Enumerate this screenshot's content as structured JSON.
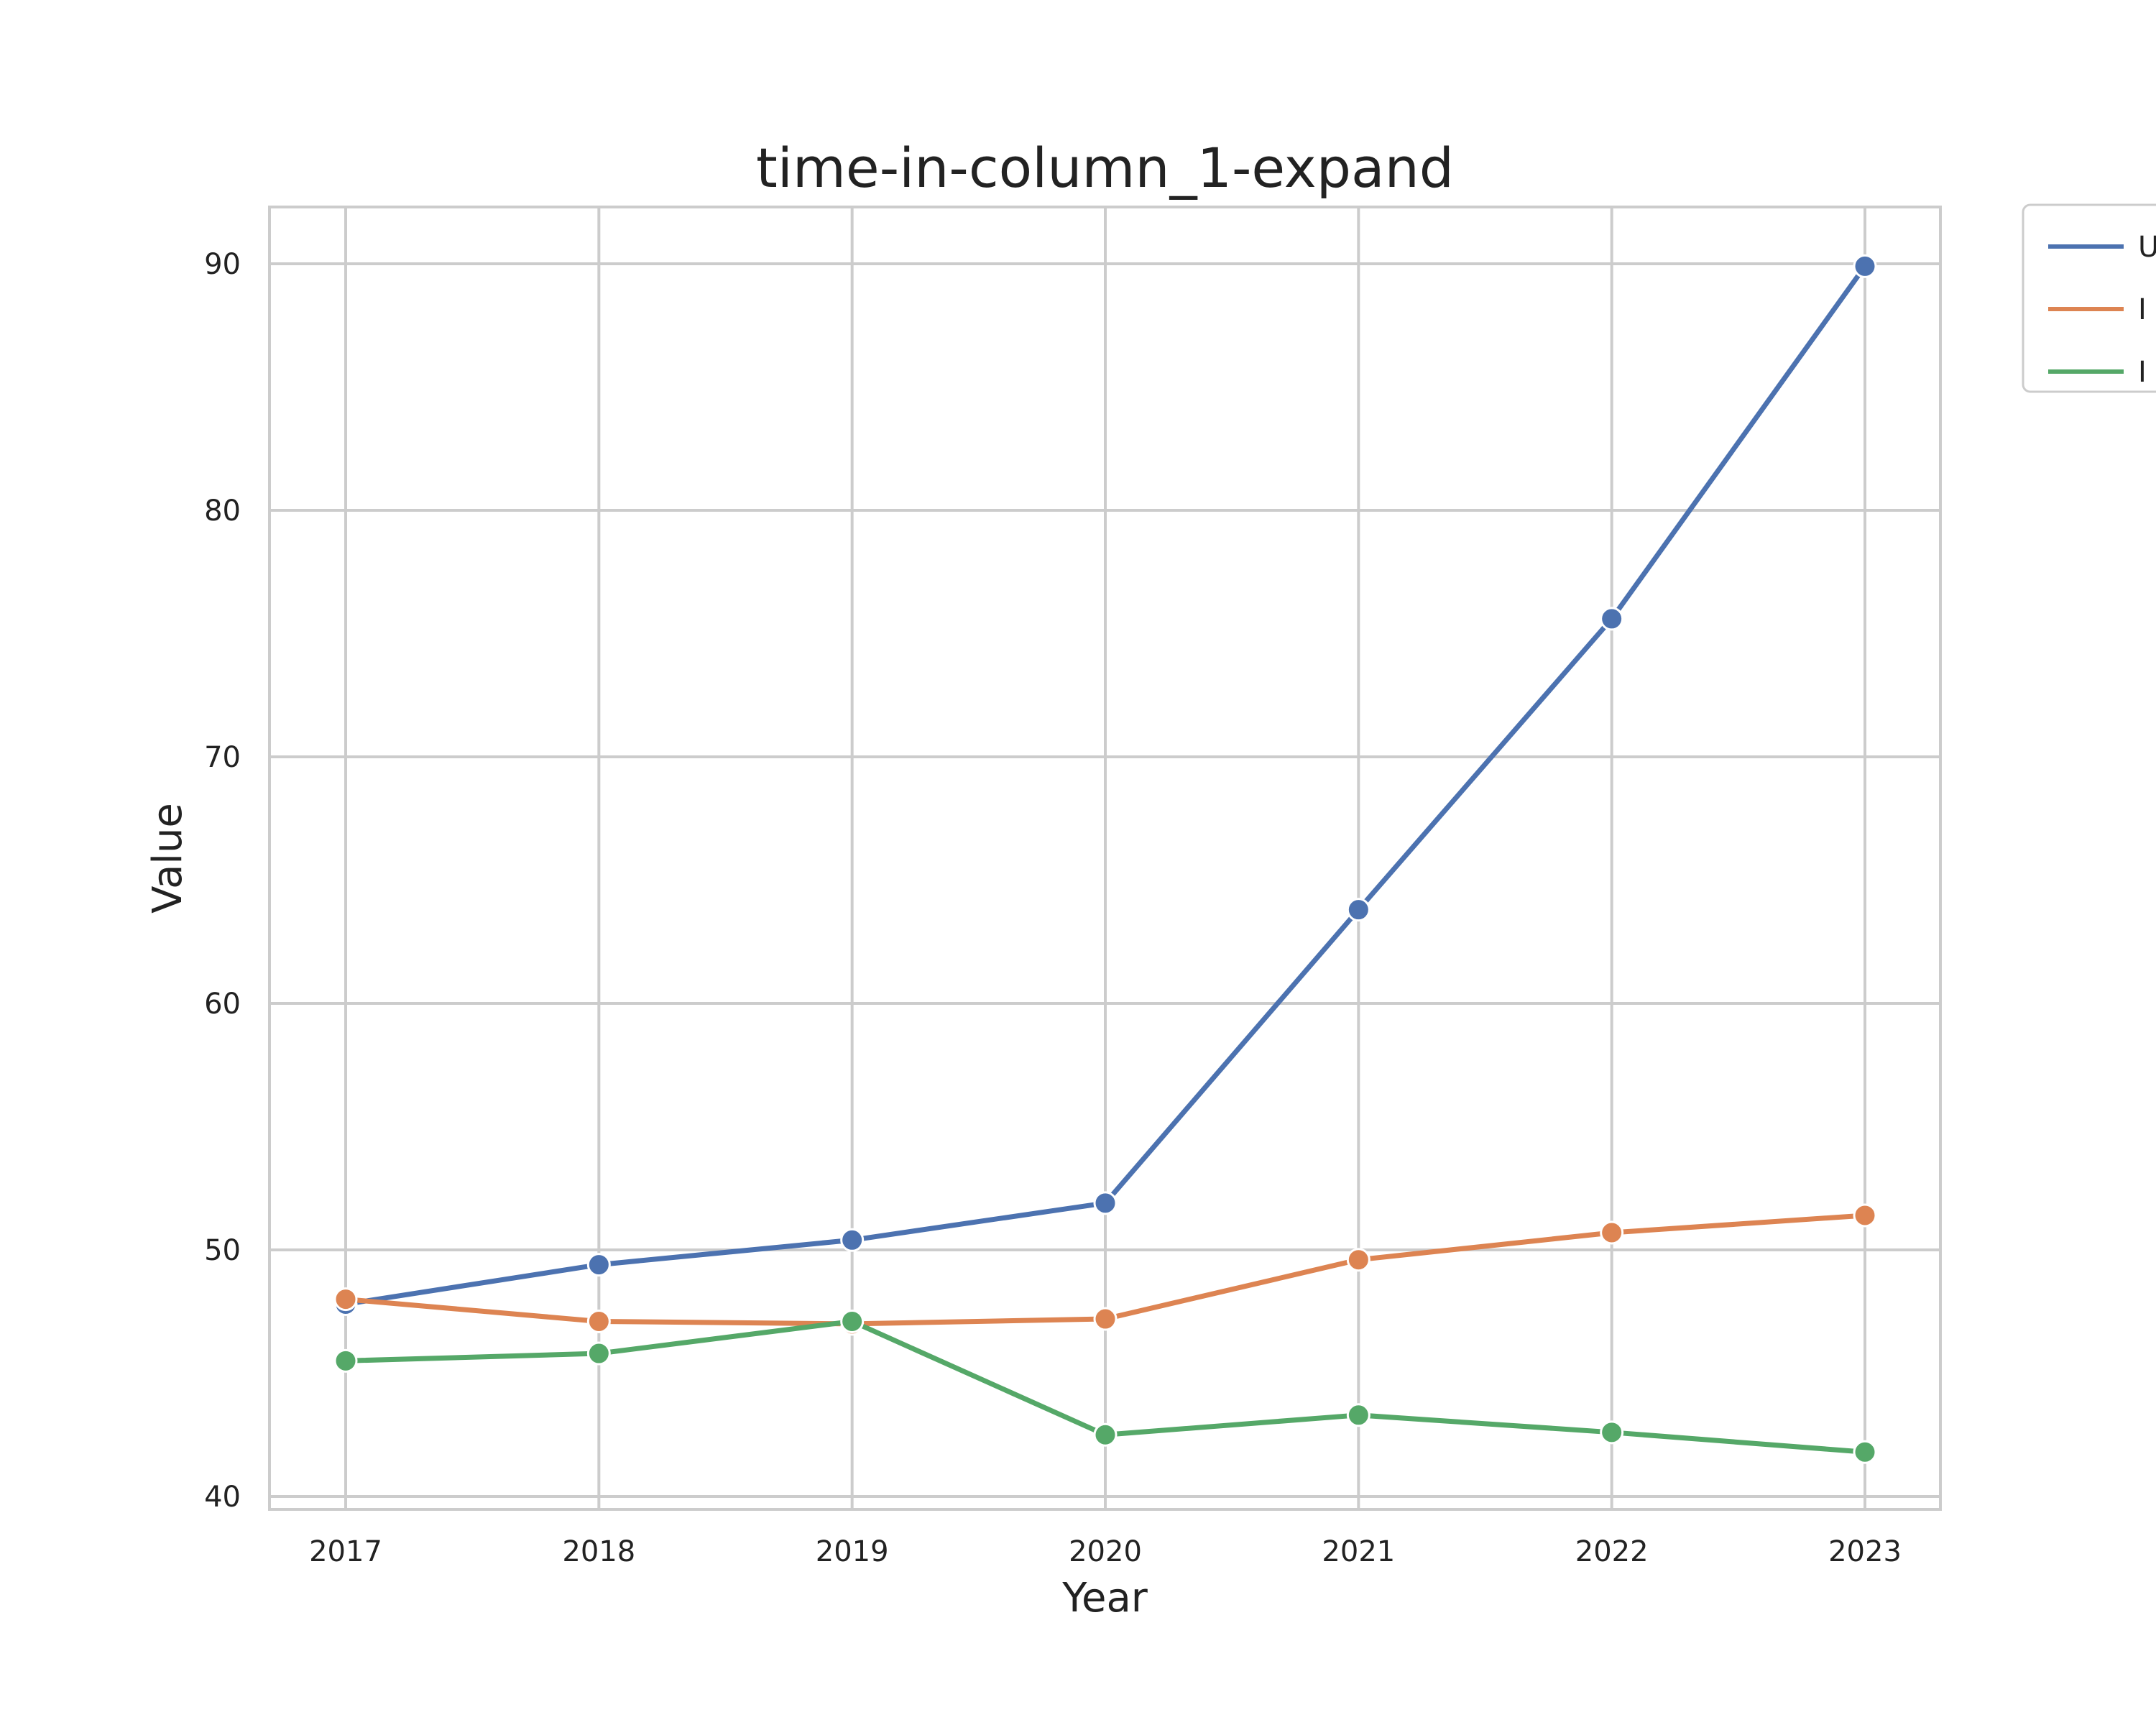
{
  "chart_data": {
    "type": "line",
    "title": "time-in-column_1-expand",
    "xlabel": "Year",
    "ylabel": "Value",
    "x": [
      2017,
      2018,
      2019,
      2020,
      2021,
      2022,
      2023
    ],
    "xlim": [
      2016.7,
      2023.3
    ],
    "ylim": [
      39.4,
      92.3
    ],
    "yticks": [
      40,
      50,
      60,
      70,
      80,
      90
    ],
    "grid": true,
    "legend_position": "outside-top-right",
    "series": [
      {
        "name": "U",
        "color": "#4c72b0",
        "values": [
          47.8,
          49.4,
          50.4,
          51.9,
          63.8,
          75.6,
          89.9
        ]
      },
      {
        "name": "I",
        "color": "#dd8452",
        "values": [
          48.0,
          47.1,
          47.0,
          47.2,
          49.6,
          50.7,
          51.4
        ]
      },
      {
        "name": "I",
        "color": "#55a868",
        "values": [
          45.5,
          45.8,
          47.1,
          42.5,
          43.3,
          42.6,
          41.8
        ]
      }
    ]
  }
}
